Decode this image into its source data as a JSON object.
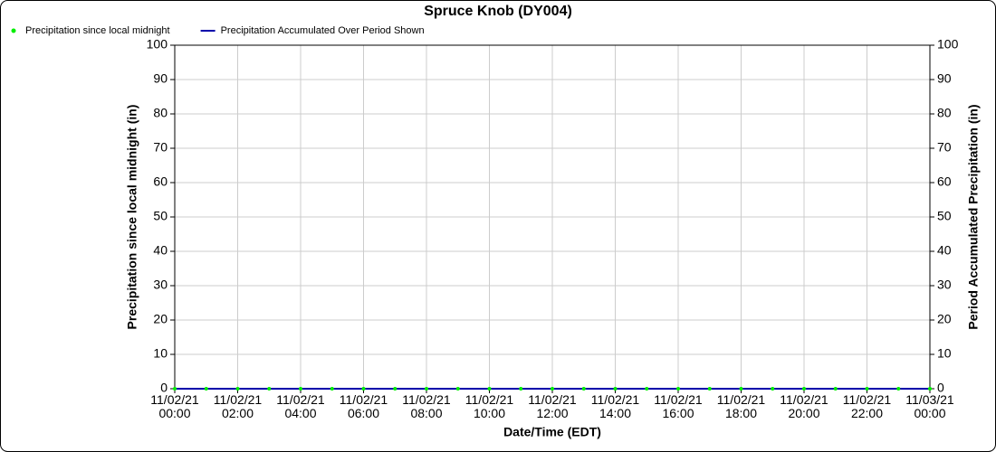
{
  "chart_data": {
    "type": "line",
    "title": "Spruce Knob (DY004)",
    "x_label": "Date/Time (EDT)",
    "y_label": "Precipitation since local midnight (in)",
    "y2_label": "Period Accumulated Precipitation (in)",
    "x": [
      "11/02/21 00:00",
      "11/02/21 01:00",
      "11/02/21 02:00",
      "11/02/21 03:00",
      "11/02/21 04:00",
      "11/02/21 05:00",
      "11/02/21 06:00",
      "11/02/21 07:00",
      "11/02/21 08:00",
      "11/02/21 09:00",
      "11/02/21 10:00",
      "11/02/21 11:00",
      "11/02/21 12:00",
      "11/02/21 13:00",
      "11/02/21 14:00",
      "11/02/21 15:00",
      "11/02/21 16:00",
      "11/02/21 17:00",
      "11/02/21 18:00",
      "11/02/21 19:00",
      "11/02/21 20:00",
      "11/02/21 21:00",
      "11/02/21 22:00",
      "11/02/21 23:00",
      "11/03/21 00:00"
    ],
    "series": [
      {
        "name": "Precipitation since local midnight",
        "color": "#00ee00",
        "style": "points",
        "values": [
          0,
          0,
          0,
          0,
          0,
          0,
          0,
          0,
          0,
          0,
          0,
          0,
          0,
          0,
          0,
          0,
          0,
          0,
          0,
          0,
          0,
          0,
          0,
          0,
          0
        ]
      },
      {
        "name": "Precipitation Accumulated Over Period Shown",
        "color": "#0000aa",
        "style": "line",
        "axis": "y2",
        "values": [
          0,
          0,
          0,
          0,
          0,
          0,
          0,
          0,
          0,
          0,
          0,
          0,
          0,
          0,
          0,
          0,
          0,
          0,
          0,
          0,
          0,
          0,
          0,
          0,
          0
        ]
      }
    ],
    "xlim": [
      "11/02/21 00:00",
      "11/03/21 00:00"
    ],
    "xticks": [
      "11/02/21 00:00",
      "11/02/21 02:00",
      "11/02/21 04:00",
      "11/02/21 06:00",
      "11/02/21 08:00",
      "11/02/21 10:00",
      "11/02/21 12:00",
      "11/02/21 14:00",
      "11/02/21 16:00",
      "11/02/21 18:00",
      "11/02/21 20:00",
      "11/02/21 22:00",
      "11/03/21 00:00"
    ],
    "ylim": [
      0,
      100
    ],
    "yticks": [
      0,
      10,
      20,
      30,
      40,
      50,
      60,
      70,
      80,
      90,
      100
    ],
    "y2lim": [
      0,
      100
    ],
    "y2ticks": [
      0,
      10,
      20,
      30,
      40,
      50,
      60,
      70,
      80,
      90,
      100
    ],
    "grid": true
  }
}
